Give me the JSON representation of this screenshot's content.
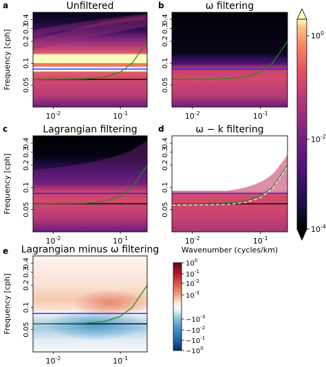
{
  "chart_data": [
    {
      "panel": "a",
      "type": "heatmap",
      "title": "Unfiltered",
      "ylabel": "Frequency [cph]",
      "xlabel": "",
      "xscale": "log",
      "yscale": "log",
      "xlim": [
        0.005,
        0.25
      ],
      "ylim": [
        0.025,
        0.5
      ],
      "xticks": [
        "10^{-2}",
        "10^{-1}"
      ],
      "yticks": [
        "0.4",
        "0.3",
        "0.2",
        "0.1",
        "0.05"
      ],
      "lines": [
        {
          "color": "#000000",
          "y": 0.06
        },
        {
          "color": "#ffffff",
          "y": 0.083
        },
        {
          "color": "#1a1aff",
          "y": 0.083
        },
        {
          "color": "#228b22",
          "x": [
            0.005,
            0.03,
            0.06,
            0.1,
            0.15,
            0.25
          ],
          "y": [
            0.06,
            0.061,
            0.065,
            0.076,
            0.1,
            0.2
          ]
        }
      ]
    },
    {
      "panel": "b",
      "type": "heatmap",
      "title": "ω filtering",
      "xscale": "log",
      "yscale": "log",
      "xlim": [
        0.005,
        0.25
      ],
      "ylim": [
        0.025,
        0.5
      ],
      "xticks": [
        "10^{-2}",
        "10^{-1}"
      ],
      "yticks": [
        "0.4",
        "0.3",
        "0.2",
        "0.1",
        "0.05"
      ],
      "lines": [
        {
          "color": "#1a1aff",
          "y": 0.083
        },
        {
          "color": "#228b22",
          "x": [
            0.005,
            0.03,
            0.06,
            0.1,
            0.15,
            0.25
          ],
          "y": [
            0.06,
            0.061,
            0.065,
            0.076,
            0.1,
            0.2
          ]
        }
      ]
    },
    {
      "panel": "c",
      "type": "heatmap",
      "title": "Lagrangian filtering",
      "ylabel": "Frequency [cph]",
      "xscale": "log",
      "yscale": "log",
      "xlim": [
        0.005,
        0.25
      ],
      "ylim": [
        0.025,
        0.5
      ],
      "xticks": [
        "10^{-2}",
        "10^{-1}"
      ],
      "yticks": [
        "0.4",
        "0.3",
        "0.2",
        "0.1",
        "0.05"
      ],
      "lines": [
        {
          "color": "#000000",
          "y": 0.06
        },
        {
          "color": "#1a1aff",
          "y": 0.083
        },
        {
          "color": "#228b22",
          "x": [
            0.005,
            0.03,
            0.06,
            0.1,
            0.15,
            0.25
          ],
          "y": [
            0.06,
            0.061,
            0.065,
            0.076,
            0.1,
            0.2
          ]
        }
      ]
    },
    {
      "panel": "d",
      "type": "heatmap",
      "title": "ω − k filtering",
      "xlabel": "Wavenumber (cycles/km)",
      "xscale": "log",
      "yscale": "log",
      "xlim": [
        0.005,
        0.25
      ],
      "ylim": [
        0.025,
        0.5
      ],
      "xticks": [
        "10^{-2}",
        "10^{-1}"
      ],
      "yticks": [
        "0.4",
        "0.3",
        "0.2",
        "0.1",
        "0.05"
      ],
      "lines": [
        {
          "color": "#000000",
          "y": 0.06
        },
        {
          "color": "#1a1aff",
          "y": 0.083
        },
        {
          "color": "#228b22",
          "x": [
            0.005,
            0.03,
            0.06,
            0.1,
            0.15,
            0.25
          ],
          "y": [
            0.06,
            0.061,
            0.065,
            0.076,
            0.1,
            0.2
          ]
        }
      ]
    },
    {
      "panel": "e",
      "type": "heatmap",
      "title": "Lagrangian minus ω filtering",
      "ylabel": "Frequency [cph]",
      "xlabel": "Wavenumber (cycles/km)",
      "xscale": "log",
      "yscale": "log",
      "xlim": [
        0.005,
        0.25
      ],
      "ylim": [
        0.025,
        0.5
      ],
      "xticks": [
        "10^{-2}",
        "10^{-1}"
      ],
      "yticks": [
        "0.4",
        "0.3",
        "0.2",
        "0.1",
        "0.05"
      ],
      "lines": [
        {
          "color": "#000000",
          "y": 0.06
        },
        {
          "color": "#1a1aff",
          "y": 0.083
        },
        {
          "color": "#228b22",
          "x": [
            0.005,
            0.03,
            0.06,
            0.1,
            0.15,
            0.25
          ],
          "y": [
            0.06,
            0.061,
            0.065,
            0.076,
            0.1,
            0.2
          ]
        }
      ]
    }
  ],
  "colorbar_main": {
    "cmap": "magma",
    "scale": "log",
    "range": [
      0.0001,
      2
    ],
    "ticks": [
      "10^{0}",
      "10^{-2}",
      "10^{-4}"
    ]
  },
  "colorbar_diff": {
    "cmap": "diverging-red-blue",
    "scale": "symlog",
    "range": [
      -1,
      1
    ],
    "ticks": [
      "10^{0}",
      "10^{-1}",
      "10^{-2}",
      "10^{-3}",
      "−10^{-3}",
      "−10^{-2}",
      "−10^{-1}",
      "−10^{0}"
    ]
  },
  "colors": {
    "black_line": "#000000",
    "blue_line": "#1a1aff",
    "green_line": "#228b22"
  }
}
